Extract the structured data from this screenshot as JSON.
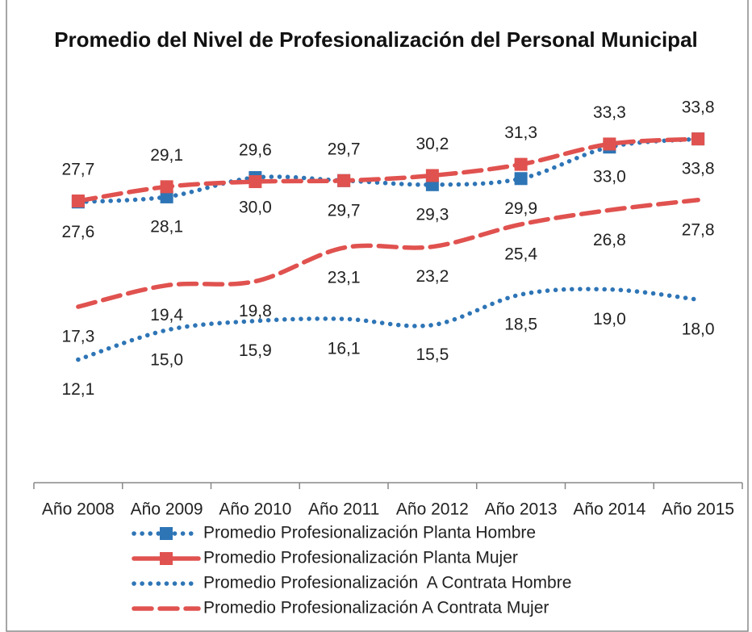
{
  "chart_data": {
    "type": "line",
    "title": "Promedio del Nivel de Profesionalización del Personal Municipal",
    "categories": [
      "Año 2008",
      "Año 2009",
      "Año 2010",
      "Año 2011",
      "Año 2012",
      "Año 2013",
      "Año 2014",
      "Año 2015"
    ],
    "ylim": [
      0,
      35
    ],
    "series": [
      {
        "name": "Promedio Profesionalización Planta Hombre",
        "color": "#2E75B6",
        "dash": "dot",
        "marker": "square",
        "label_side": "below",
        "values": [
          27.6,
          28.1,
          30.0,
          29.7,
          29.3,
          29.9,
          33.0,
          33.8
        ],
        "value_labels": [
          "27,6",
          "28,1",
          "30,0",
          "29,7",
          "29,3",
          "29,9",
          "33,0",
          "33,8"
        ]
      },
      {
        "name": "Promedio Profesionalización Planta Mujer",
        "color": "#E0524F",
        "dash": "dash",
        "marker": "square",
        "label_side": "above",
        "values": [
          27.7,
          29.1,
          29.6,
          29.7,
          30.2,
          31.3,
          33.3,
          33.8
        ],
        "value_labels": [
          "27,7",
          "29,1",
          "29,6",
          "29,7",
          "30,2",
          "31,3",
          "33,3",
          "33,8"
        ]
      },
      {
        "name": "Promedio Profesionalización  A Contrata Hombre",
        "color": "#2E75B6",
        "dash": "dot",
        "marker": "none",
        "label_side": "below",
        "values": [
          12.1,
          15.0,
          15.9,
          16.1,
          15.5,
          18.5,
          19.0,
          18.0
        ],
        "value_labels": [
          "12,1",
          "15,0",
          "15,9",
          "16,1",
          "15,5",
          "18,5",
          "19,0",
          "18,0"
        ]
      },
      {
        "name": "Promedio Profesionalización A Contrata Mujer",
        "color": "#E0524F",
        "dash": "dash",
        "marker": "none",
        "label_side": "below",
        "values": [
          17.3,
          19.4,
          19.8,
          23.1,
          23.2,
          25.4,
          26.8,
          27.8
        ],
        "value_labels": [
          "17,3",
          "19,4",
          "19,8",
          "23,1",
          "23,2",
          "25,4",
          "26,8",
          "27,8"
        ]
      }
    ]
  }
}
